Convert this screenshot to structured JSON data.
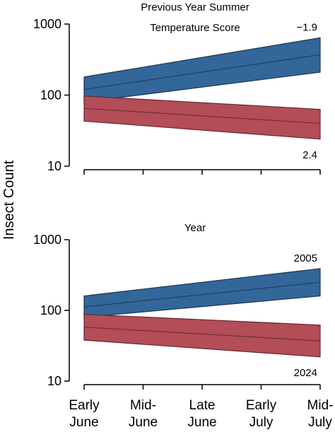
{
  "ylabel": "Insect Count",
  "x_tick_labels": [
    {
      "line1": "Early",
      "line2": "June"
    },
    {
      "line1": "Mid-",
      "line2": "June"
    },
    {
      "line1": "Late",
      "line2": "June"
    },
    {
      "line1": "Early",
      "line2": "July"
    },
    {
      "line1": "Mid-",
      "line2": "July"
    }
  ],
  "chart_data": [
    {
      "type": "area",
      "title_lines": [
        "Previous Year Summer",
        "Temperature Score"
      ],
      "x": [
        0,
        1,
        2,
        3,
        4
      ],
      "categories": [
        "Early June",
        "Mid-June",
        "Late June",
        "Early July",
        "Mid-July"
      ],
      "yscale": "log",
      "ylim": [
        10,
        1000
      ],
      "yticks": [
        10,
        100,
        1000
      ],
      "ytick_labels": [
        "10",
        "100",
        "1000"
      ],
      "grid": false,
      "series": [
        {
          "name": "−1.9",
          "color": "#336699",
          "label_position": "end-top",
          "mean": [
            120,
            370
          ],
          "lower": [
            80,
            210
          ],
          "upper": [
            180,
            640
          ]
        },
        {
          "name": "2.4",
          "color": "#b34d57",
          "label_position": "end-bottom",
          "mean": [
            65,
            40
          ],
          "lower": [
            43,
            24
          ],
          "upper": [
            97,
            63
          ]
        }
      ]
    },
    {
      "type": "area",
      "title_lines": [
        "Year"
      ],
      "x": [
        0,
        1,
        2,
        3,
        4
      ],
      "categories": [
        "Early June",
        "Mid-June",
        "Late June",
        "Early July",
        "Mid-July"
      ],
      "yscale": "log",
      "ylim": [
        10,
        1000
      ],
      "yticks": [
        10,
        100,
        1000
      ],
      "ytick_labels": [
        "10",
        "100",
        "1000"
      ],
      "grid": false,
      "series": [
        {
          "name": "2005",
          "color": "#336699",
          "label_position": "end-top",
          "mean": [
            112,
            250
          ],
          "lower": [
            80,
            160
          ],
          "upper": [
            160,
            390
          ]
        },
        {
          "name": "2024",
          "color": "#b34d57",
          "label_position": "end-bottom",
          "mean": [
            58,
            37
          ],
          "lower": [
            38,
            22
          ],
          "upper": [
            88,
            62
          ]
        }
      ]
    }
  ]
}
